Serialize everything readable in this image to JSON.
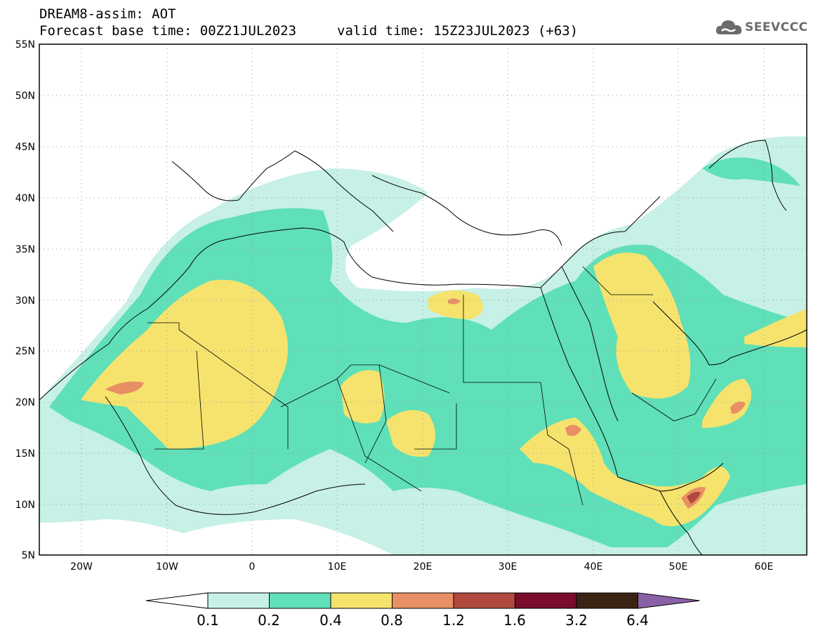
{
  "header": {
    "title": "DREAM8-assim: AOT",
    "base_time": "Forecast base time: 00Z21JUL2023",
    "valid_time": "valid time: 15Z23JUL2023 (+63)"
  },
  "logo": {
    "text": "SEEVCCC",
    "icon": "cloud-icon",
    "color": "#6b6b6b"
  },
  "map": {
    "lat_range": [
      5,
      55
    ],
    "lon_range": [
      -25,
      65
    ],
    "lat_ticks": [
      "5N",
      "10N",
      "15N",
      "20N",
      "25N",
      "30N",
      "35N",
      "40N",
      "45N",
      "50N",
      "55N"
    ],
    "lon_ticks": [
      "20W",
      "10W",
      "0",
      "10E",
      "20E",
      "30E",
      "40E",
      "50E",
      "60E"
    ],
    "grid": "dotted"
  },
  "colorbar": {
    "labels": [
      "0.1",
      "0.2",
      "0.4",
      "0.8",
      "1.2",
      "1.6",
      "3.2",
      "6.4"
    ],
    "colors": [
      "#ffffff",
      "#c7f0e6",
      "#5fe0b8",
      "#f5e36e",
      "#e88f65",
      "#b04a3e",
      "#7a0d2c",
      "#3b2414",
      "#8a61a6"
    ]
  }
}
